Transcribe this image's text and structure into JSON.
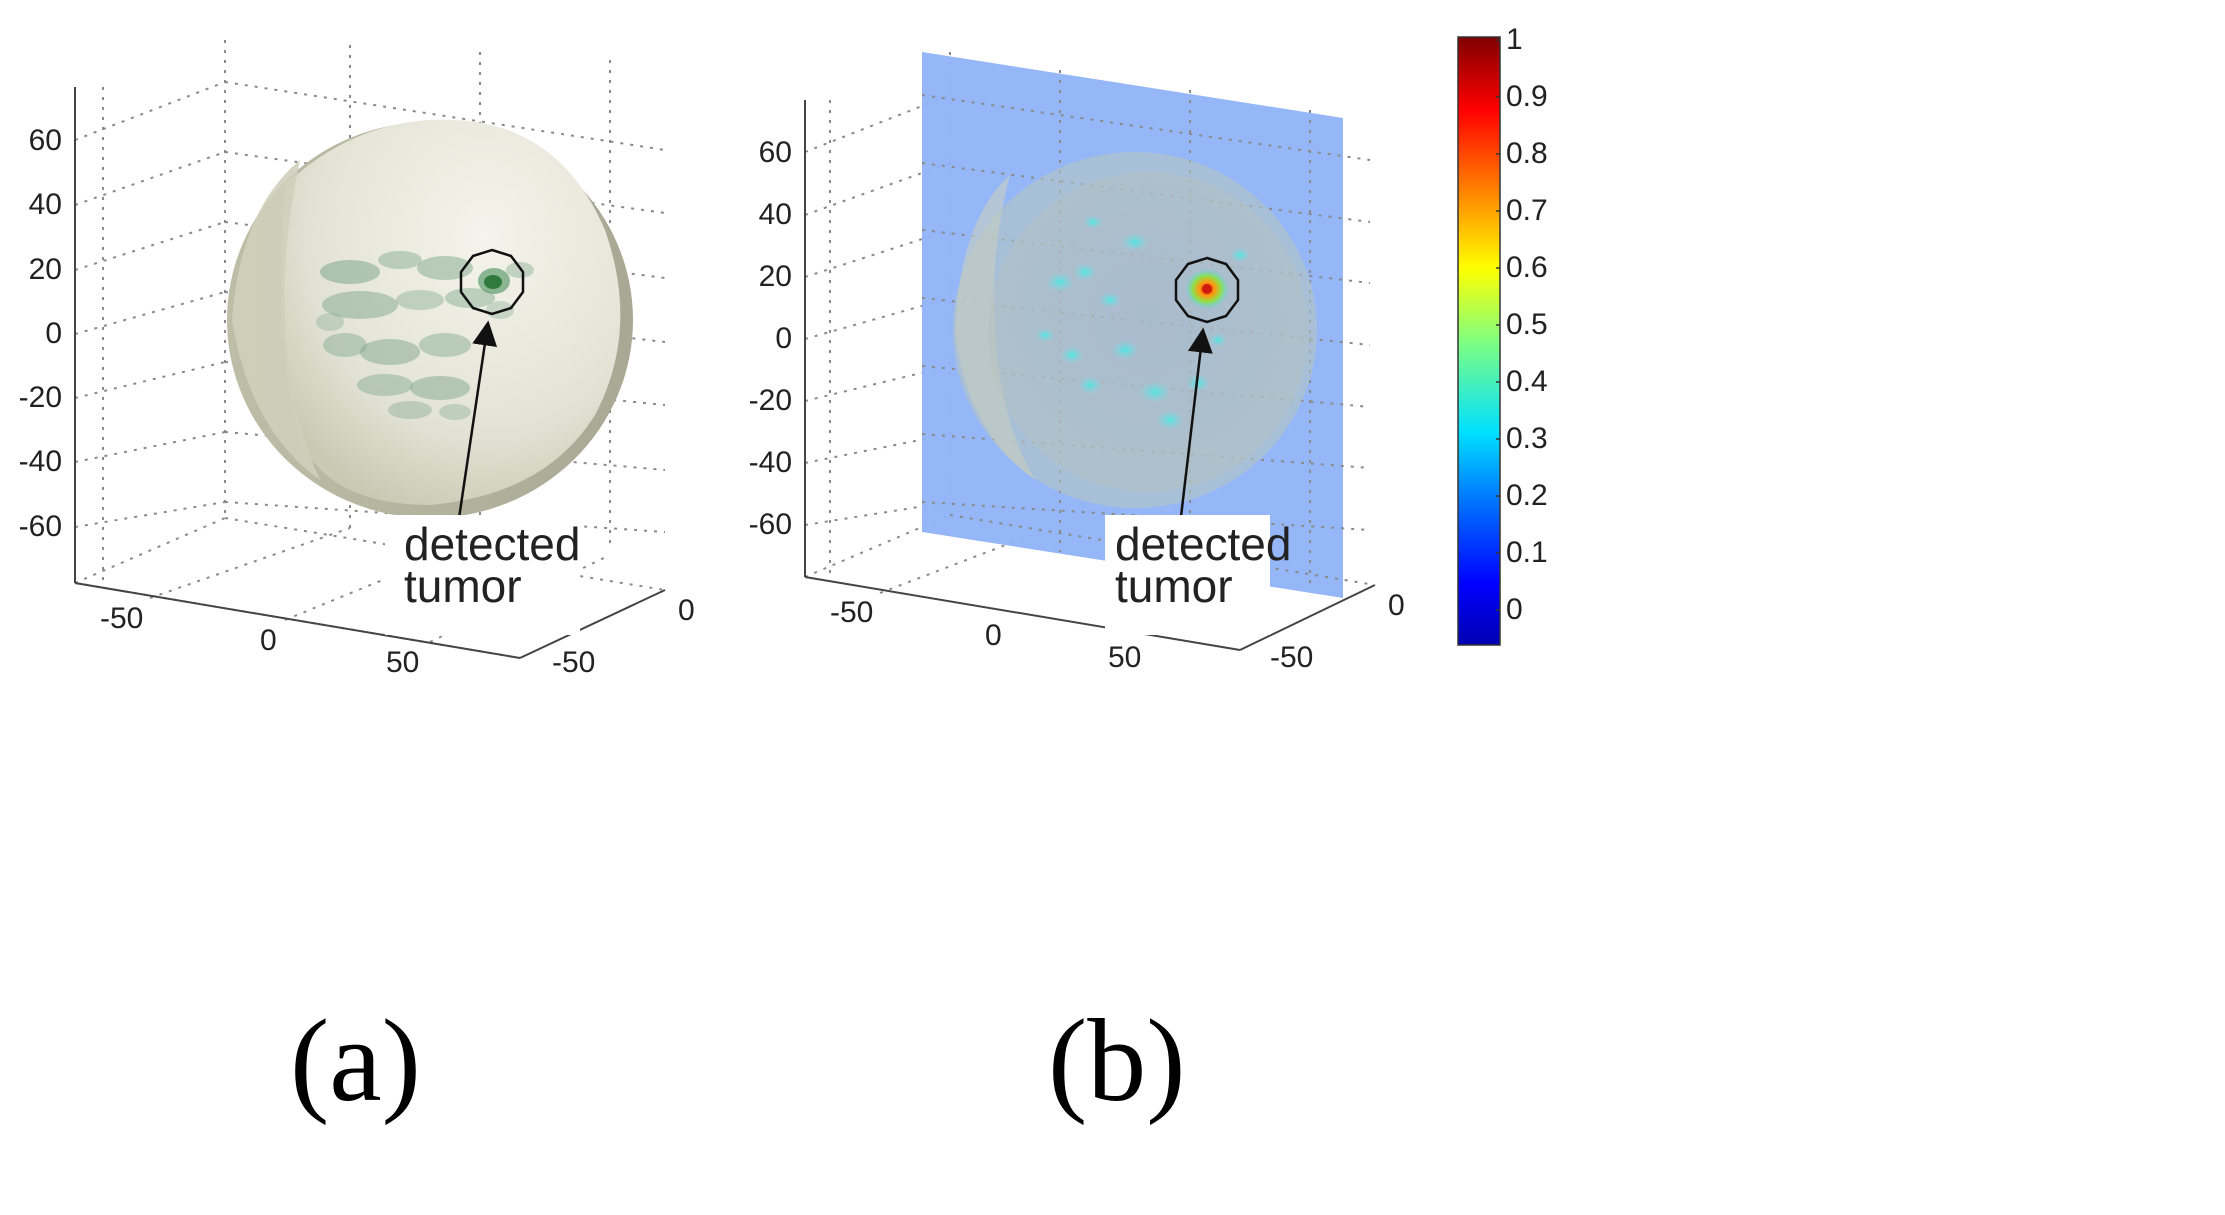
{
  "chart_data": [
    {
      "type": "other",
      "subtype": "3d-volume-render",
      "panel_label": "(a)",
      "z_ticks": [
        "60",
        "40",
        "20",
        "0",
        "-20",
        "-40",
        "-60"
      ],
      "x_ticks": [
        "-50",
        "0",
        "50"
      ],
      "y_ticks": [
        "0",
        "-50"
      ],
      "annotation": [
        "detected",
        "tumor"
      ],
      "colors": {
        "sphere": "#e8e8dc",
        "sphere_shade": "#b9b9a6",
        "tissue": "#7fa88c",
        "tumor": "#2f7a3c"
      }
    },
    {
      "type": "other",
      "subtype": "3d-volume-render-with-slice",
      "panel_label": "(b)",
      "z_ticks": [
        "60",
        "40",
        "20",
        "0",
        "-20",
        "-40",
        "-60"
      ],
      "x_ticks": [
        "-50",
        "0",
        "50"
      ],
      "y_ticks": [
        "0",
        "-50"
      ],
      "annotation": [
        "detected",
        "tumor"
      ],
      "colorbar": {
        "ticks": [
          "1",
          "0.9",
          "0.8",
          "0.7",
          "0.6",
          "0.5",
          "0.4",
          "0.3",
          "0.2",
          "0.1",
          "0"
        ],
        "colormap": "jet",
        "range": [
          0,
          1
        ]
      },
      "colors": {
        "slice": "#8fb3f7",
        "sphere": "#b9c4c8",
        "hotspot": "#e8311a"
      }
    }
  ]
}
